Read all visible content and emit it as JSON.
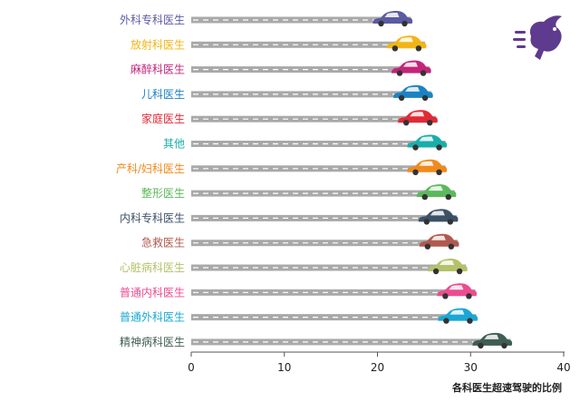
{
  "chart_data": {
    "type": "bar",
    "categories": [
      "外科专科医生",
      "放射科医生",
      "麻醉科医生",
      "儿科医生",
      "家庭医生",
      "其他",
      "产科/妇科医生",
      "整形医生",
      "内科专科医生",
      "急救医生",
      "心脏病科医生",
      "普通内科医生",
      "普通外科医生",
      "精神病科医生"
    ],
    "values": [
      23.6,
      25.1,
      25.6,
      25.8,
      26.3,
      27.3,
      27.3,
      28.3,
      28.5,
      28.6,
      29.5,
      30.5,
      30.6,
      34.3
    ],
    "colors": [
      "#5b5aa3",
      "#f2b516",
      "#c2257a",
      "#1d82c4",
      "#e02a36",
      "#1aaea9",
      "#f08a1c",
      "#5cb85c",
      "#3d5166",
      "#b05a4e",
      "#b5c26a",
      "#ec4c8f",
      "#1aa7d3",
      "#3f5e53"
    ],
    "xlabel": "各科医生超速驾驶的比例",
    "xlim": [
      0,
      40
    ],
    "xticks": [
      0,
      10,
      20,
      30,
      40
    ],
    "road_color": "#a9a9a9",
    "logo_icon": "running-rabbit-icon",
    "logo_color": "#5e3b8f"
  }
}
